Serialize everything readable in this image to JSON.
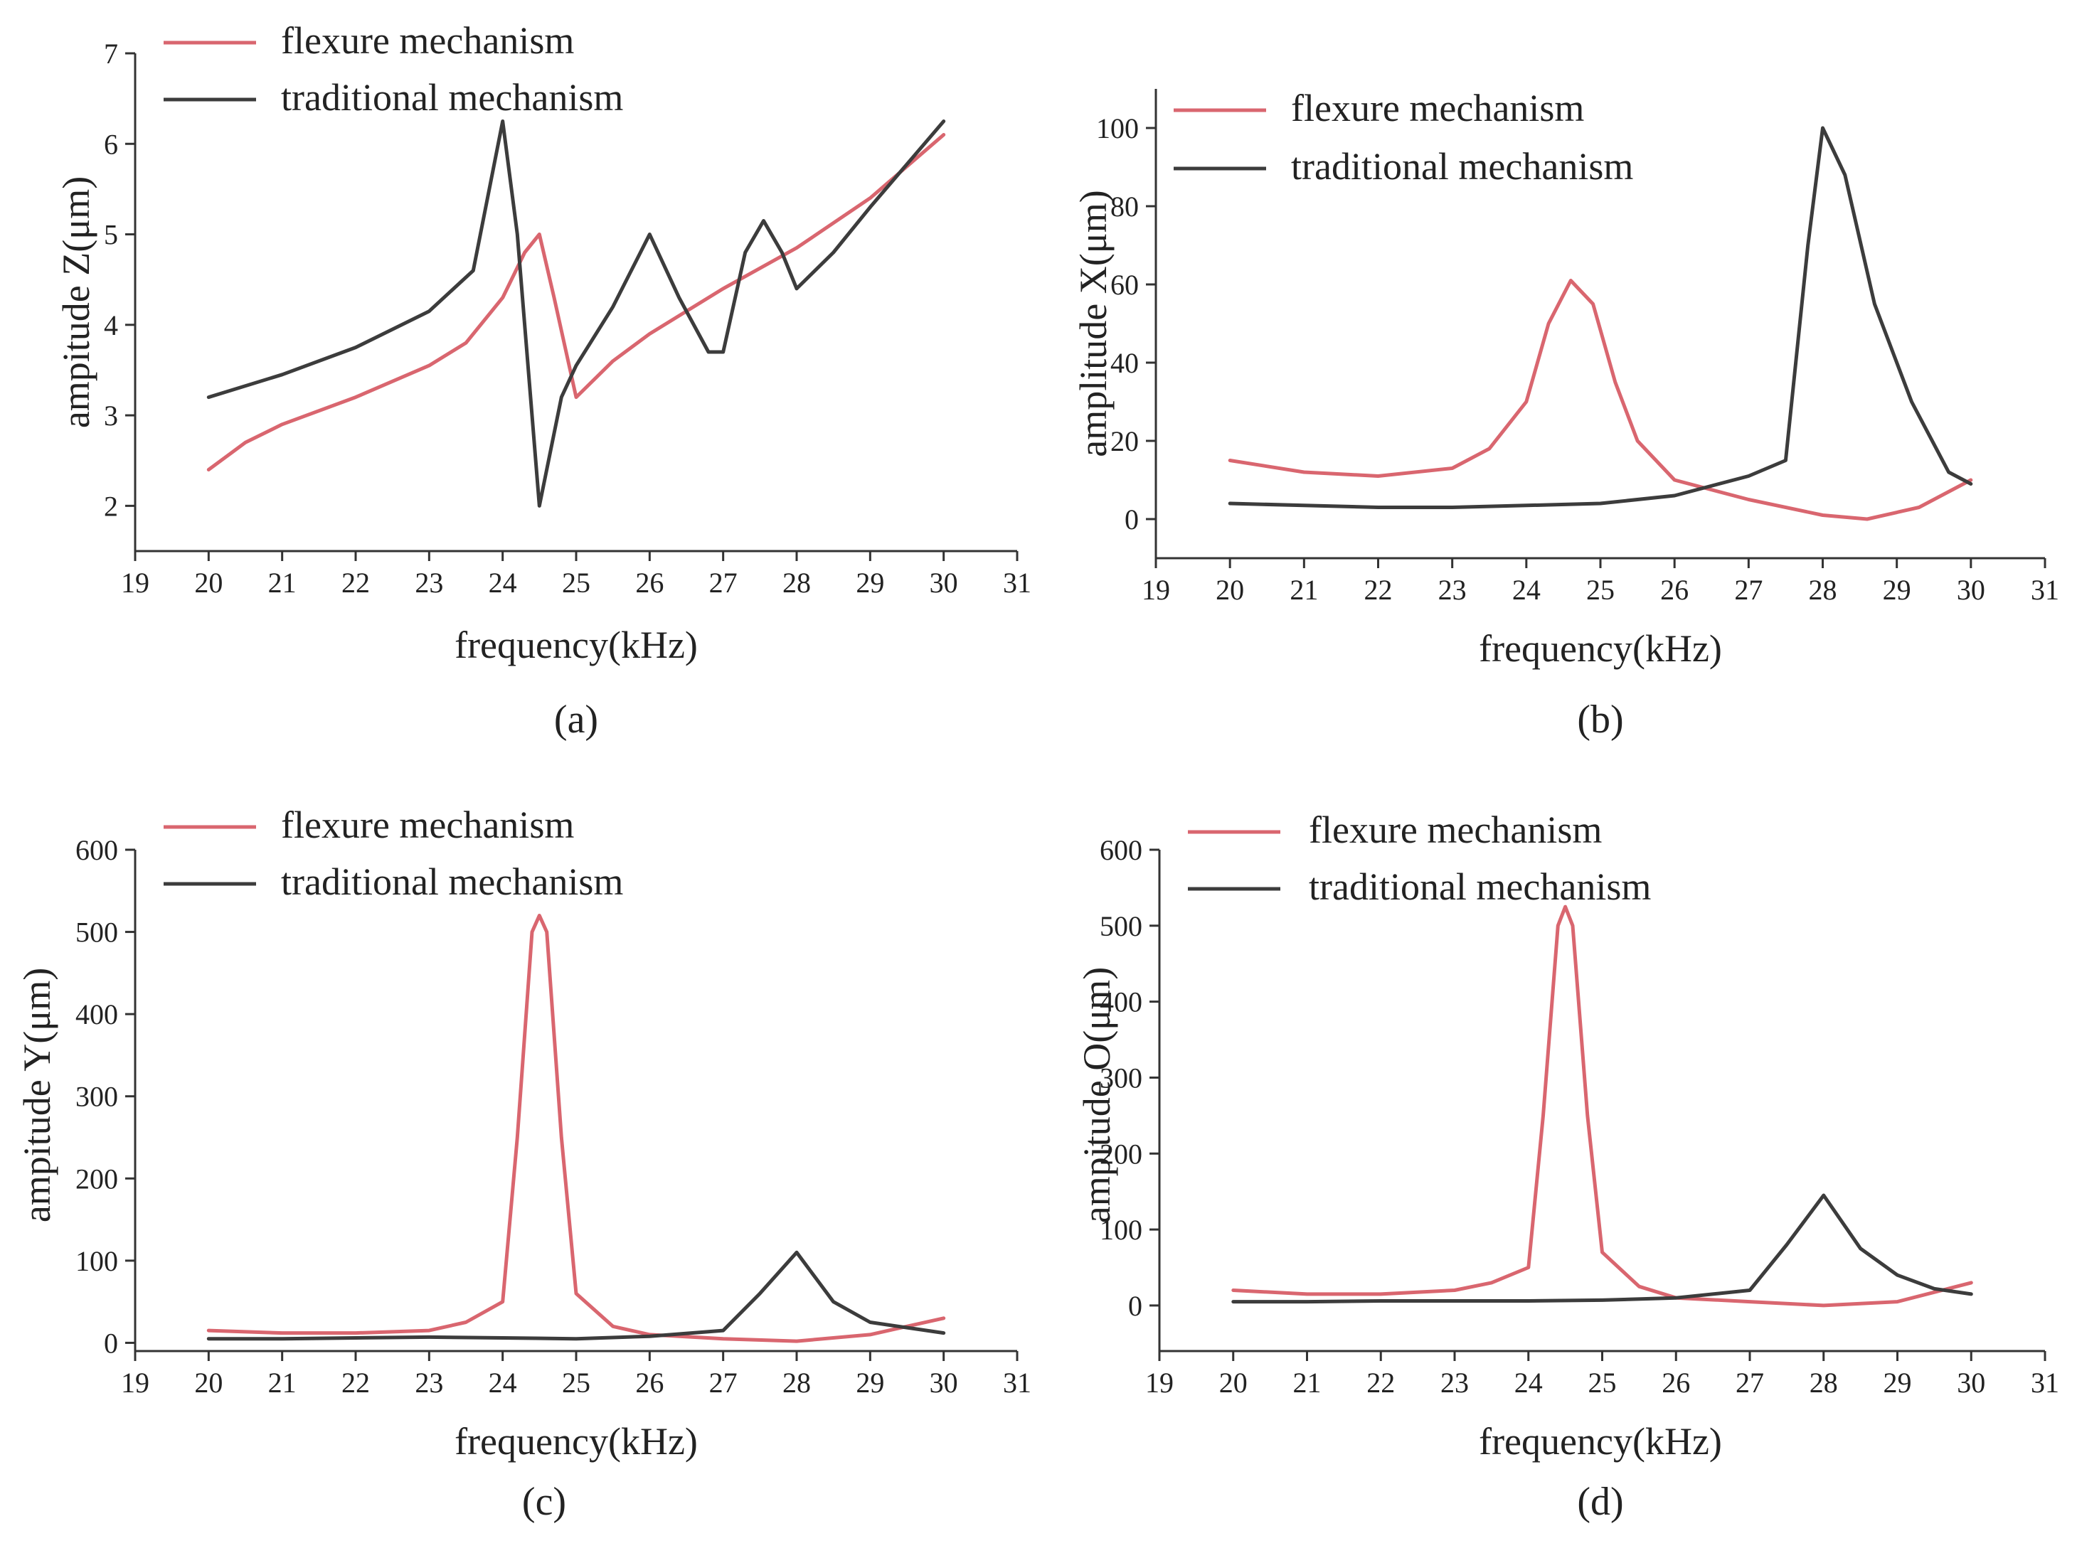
{
  "colors": {
    "flexure": "#d9666f",
    "traditional": "#3c3c3c",
    "axis": "#333333"
  },
  "chart_data": [
    {
      "type": "line",
      "panel_label": "(a)",
      "xlabel": "frequency(kHz)",
      "ylabel": "ampitude Z(μm)",
      "xlim": [
        19,
        31
      ],
      "ylim": [
        1.5,
        7
      ],
      "xticks": [
        19,
        20,
        21,
        22,
        23,
        24,
        25,
        26,
        27,
        28,
        29,
        30,
        31
      ],
      "yticks": [
        2,
        3,
        4,
        5,
        6,
        7
      ],
      "legend_position": "top-left",
      "series": [
        {
          "name": "flexure mechanism",
          "color_key": "flexure",
          "x": [
            20,
            20.5,
            21,
            22,
            23,
            23.5,
            24,
            24.3,
            24.5,
            24.7,
            25,
            25.5,
            26,
            27,
            28,
            29,
            30
          ],
          "y": [
            2.4,
            2.7,
            2.9,
            3.2,
            3.55,
            3.8,
            4.3,
            4.8,
            5.0,
            4.3,
            3.2,
            3.6,
            3.9,
            4.4,
            4.85,
            5.4,
            6.1
          ]
        },
        {
          "name": "traditional mechanism",
          "color_key": "traditional",
          "x": [
            20,
            21,
            22,
            23,
            23.6,
            24,
            24.2,
            24.5,
            24.8,
            25,
            25.5,
            26,
            26.4,
            26.8,
            27,
            27.3,
            27.55,
            27.8,
            28,
            28.5,
            29,
            30
          ],
          "y": [
            3.2,
            3.45,
            3.75,
            4.15,
            4.6,
            6.25,
            5.0,
            2.0,
            3.2,
            3.55,
            4.2,
            5.0,
            4.3,
            3.7,
            3.7,
            4.8,
            5.15,
            4.8,
            4.4,
            4.8,
            5.3,
            6.25
          ]
        }
      ]
    },
    {
      "type": "line",
      "panel_label": "(b)",
      "xlabel": "frequency(kHz)",
      "ylabel": "amplitude X(μm)",
      "xlim": [
        19,
        31
      ],
      "ylim": [
        -10,
        110
      ],
      "xticks": [
        19,
        20,
        21,
        22,
        23,
        24,
        25,
        26,
        27,
        28,
        29,
        30,
        31
      ],
      "yticks": [
        0,
        20,
        40,
        60,
        80,
        100
      ],
      "legend_position": "top-left",
      "series": [
        {
          "name": "flexure mechanism",
          "color_key": "flexure",
          "x": [
            20,
            21,
            22,
            23,
            23.5,
            24,
            24.3,
            24.6,
            24.9,
            25.2,
            25.5,
            26,
            27,
            28,
            28.6,
            29.3,
            30
          ],
          "y": [
            15,
            12,
            11,
            13,
            18,
            30,
            50,
            61,
            55,
            35,
            20,
            10,
            5,
            1,
            0,
            3,
            10
          ]
        },
        {
          "name": "traditional mechanism",
          "color_key": "traditional",
          "x": [
            20,
            21,
            22,
            23,
            24,
            25,
            26,
            27,
            27.5,
            27.8,
            28,
            28.3,
            28.7,
            29.2,
            29.7,
            30
          ],
          "y": [
            4,
            3.5,
            3,
            3,
            3.5,
            4,
            6,
            11,
            15,
            70,
            100,
            88,
            55,
            30,
            12,
            9
          ]
        }
      ]
    },
    {
      "type": "line",
      "panel_label": "(c)",
      "xlabel": "frequency(kHz)",
      "ylabel": "ampitude Y(μm)",
      "xlim": [
        19,
        31
      ],
      "ylim": [
        -10,
        600
      ],
      "xticks": [
        19,
        20,
        21,
        22,
        23,
        24,
        25,
        26,
        27,
        28,
        29,
        30,
        31
      ],
      "yticks": [
        0,
        100,
        200,
        300,
        400,
        500,
        600
      ],
      "legend_position": "top-left",
      "series": [
        {
          "name": "flexure mechanism",
          "color_key": "flexure",
          "x": [
            20,
            21,
            22,
            23,
            23.5,
            24,
            24.2,
            24.4,
            24.5,
            24.6,
            24.8,
            25,
            25.5,
            26,
            27,
            28,
            29,
            30
          ],
          "y": [
            15,
            12,
            12,
            15,
            25,
            50,
            250,
            500,
            520,
            500,
            250,
            60,
            20,
            10,
            5,
            2,
            10,
            30
          ]
        },
        {
          "name": "traditional mechanism",
          "color_key": "traditional",
          "x": [
            20,
            21,
            22,
            23,
            24,
            25,
            26,
            27,
            27.5,
            28,
            28.5,
            29,
            30
          ],
          "y": [
            5,
            5,
            6,
            7,
            6,
            5,
            8,
            15,
            60,
            110,
            50,
            25,
            12
          ]
        }
      ]
    },
    {
      "type": "line",
      "panel_label": "(d)",
      "xlabel": "frequency(kHz)",
      "ylabel": "ampitude O(μm)",
      "xlim": [
        19,
        31
      ],
      "ylim": [
        -60,
        600
      ],
      "xticks": [
        19,
        20,
        21,
        22,
        23,
        24,
        25,
        26,
        27,
        28,
        29,
        30,
        31
      ],
      "yticks": [
        0,
        100,
        200,
        300,
        400,
        500,
        600
      ],
      "legend_position": "top-left",
      "series": [
        {
          "name": "flexure mechanism",
          "color_key": "flexure",
          "x": [
            20,
            21,
            22,
            23,
            23.5,
            24,
            24.2,
            24.4,
            24.5,
            24.6,
            24.8,
            25,
            25.5,
            26,
            27,
            28,
            29,
            30
          ],
          "y": [
            20,
            15,
            15,
            20,
            30,
            50,
            250,
            500,
            525,
            500,
            250,
            70,
            25,
            10,
            5,
            0,
            5,
            30
          ]
        },
        {
          "name": "traditional mechanism",
          "color_key": "traditional",
          "x": [
            20,
            21,
            22,
            23,
            24,
            25,
            26,
            27,
            27.5,
            28,
            28.5,
            29,
            29.5,
            30
          ],
          "y": [
            5,
            5,
            6,
            6,
            6,
            7,
            10,
            20,
            80,
            145,
            75,
            40,
            22,
            15
          ]
        }
      ]
    }
  ]
}
